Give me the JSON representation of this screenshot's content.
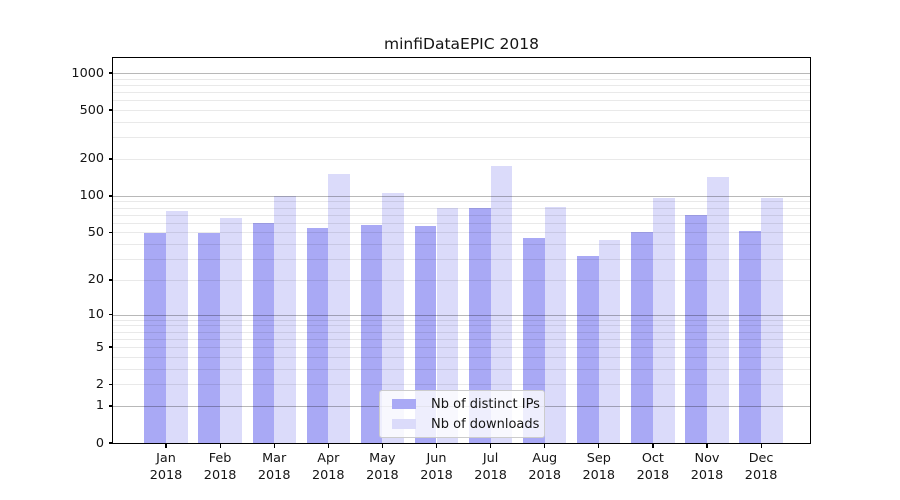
{
  "chart_data": {
    "type": "bar",
    "title": "minfiDataEPIC 2018",
    "categories": [
      "Jan 2018",
      "Feb 2018",
      "Mar 2018",
      "Apr 2018",
      "May 2018",
      "Jun 2018",
      "Jul 2018",
      "Aug 2018",
      "Sep 2018",
      "Oct 2018",
      "Nov 2018",
      "Dec 2018"
    ],
    "months": [
      "Jan",
      "Feb",
      "Mar",
      "Apr",
      "May",
      "Jun",
      "Jul",
      "Aug",
      "Sep",
      "Oct",
      "Nov",
      "Dec"
    ],
    "year_label": "2018",
    "series": [
      {
        "name": "Nb of distinct IPs",
        "color": "#a9a9f5",
        "values": [
          49,
          49,
          60,
          54,
          58,
          56,
          80,
          45,
          32,
          50,
          70,
          51
        ]
      },
      {
        "name": "Nb of downloads",
        "color": "#dbdbfa",
        "values": [
          75,
          66,
          100,
          150,
          105,
          80,
          175,
          81,
          43,
          96,
          143,
          96
        ]
      }
    ],
    "yscale": "log1p",
    "ylim": [
      0,
      1280
    ],
    "yticks": [
      0,
      1,
      2,
      5,
      10,
      20,
      50,
      100,
      200,
      500,
      1000
    ],
    "grid_major": [
      1,
      10,
      100,
      1000
    ],
    "grid_minor": [
      2,
      3,
      4,
      5,
      6,
      7,
      8,
      9,
      20,
      30,
      40,
      50,
      60,
      70,
      80,
      90,
      200,
      300,
      400,
      500,
      600,
      700,
      800,
      900
    ],
    "grid": "horizontal",
    "legend_position": "lower center",
    "axis_color": "#000000",
    "grid_major_color": "#b8b8b8",
    "grid_minor_color": "#e9e9e9"
  }
}
